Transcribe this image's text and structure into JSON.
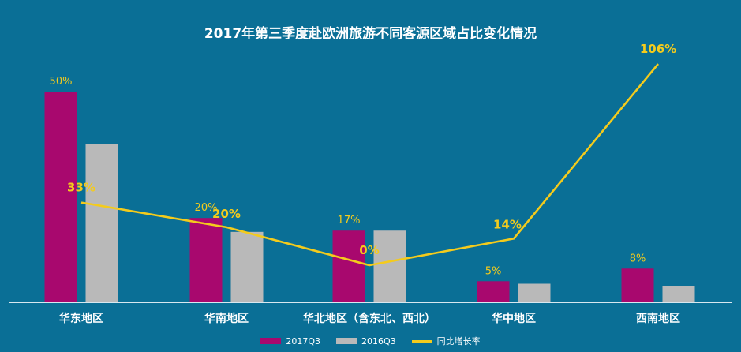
{
  "chart_data": {
    "type": "bar",
    "title": "2017年第三季度赴欧洲旅游不同客源区域占比变化情况",
    "categories": [
      "华东地区",
      "华南地区",
      "华北地区（含东北、西北）",
      "华中地区",
      "西南地区"
    ],
    "series": [
      {
        "name": "2017Q3",
        "type": "bar",
        "values": [
          50,
          20,
          17,
          5,
          8
        ],
        "labels": [
          "50%",
          "20%",
          "17%",
          "5%",
          "8%"
        ]
      },
      {
        "name": "2016Q3",
        "type": "bar",
        "values": [
          37.6,
          16.7,
          17,
          4.4,
          3.9
        ],
        "labels": []
      },
      {
        "name": "同比增长率",
        "type": "line",
        "values": [
          33,
          20,
          0,
          14,
          106
        ],
        "labels": [
          "33%",
          "20%",
          "0%",
          "14%",
          "106%"
        ]
      }
    ],
    "ylim_bars": [
      0,
      50
    ],
    "ylim_line": [
      0,
      106
    ],
    "legend_position": "bottom",
    "grid": false
  },
  "colors": {
    "background": "#0a6f96",
    "bar_2017": "#a8086e",
    "bar_2016": "#b9b9b9",
    "line": "#f4cb1c",
    "label_bar": "#f4cb1c",
    "label_line": "#f4cb1c",
    "axis": "#d8e8f0",
    "text": "#ffffff"
  }
}
